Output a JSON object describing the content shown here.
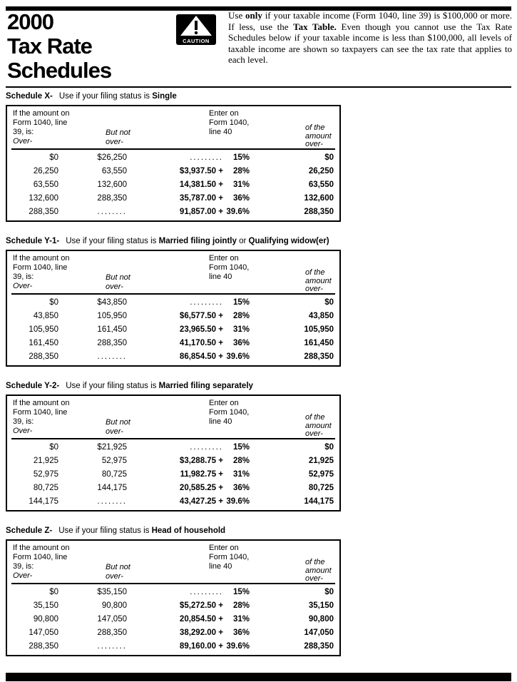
{
  "page": {
    "title_lines": [
      "2000",
      "Tax Rate",
      "Schedules"
    ],
    "caution_label": "CAUTION",
    "intro_segments": [
      {
        "text": "Use ",
        "bold": false
      },
      {
        "text": "only",
        "bold": true
      },
      {
        "text": " if your taxable income (Form 1040, line 39) is $100,000 or more. If less, use the ",
        "bold": false
      },
      {
        "text": "Tax Table.",
        "bold": true
      },
      {
        "text": " Even though you cannot use the Tax Rate Schedules below if your taxable income is less than $100,000, all levels of taxable income are shown so taxpayers can see the tax rate that applies to each level.",
        "bold": false
      }
    ]
  },
  "columns": {
    "c1": [
      "If the amount on",
      "Form 1040, line",
      "39, is:",
      "Over-"
    ],
    "c2": [
      "But not",
      "over-"
    ],
    "c3": [
      "Enter on",
      "Form 1040,",
      "line 40"
    ],
    "c4": [
      "of the",
      "amount",
      "over-"
    ]
  },
  "schedules": [
    {
      "label": "Schedule X-",
      "desc": [
        {
          "text": "Use if your filing status is ",
          "bold": false
        },
        {
          "text": "Single",
          "bold": true
        }
      ],
      "rows": [
        {
          "over": "$0",
          "but_not_over": "$26,250",
          "base": ".........",
          "rate": "15%",
          "of_over": "$0"
        },
        {
          "over": "26,250",
          "but_not_over": "63,550",
          "base": "$3,937.50 +",
          "rate": "28%",
          "of_over": "26,250"
        },
        {
          "over": "63,550",
          "but_not_over": "132,600",
          "base": "14,381.50 +",
          "rate": "31%",
          "of_over": "63,550"
        },
        {
          "over": "132,600",
          "but_not_over": "288,350",
          "base": "35,787.00 +",
          "rate": "36%",
          "of_over": "132,600"
        },
        {
          "over": "288,350",
          "but_not_over": "........",
          "base": "91,857.00 +",
          "rate": "39.6%",
          "of_over": "288,350"
        }
      ]
    },
    {
      "label": "Schedule Y-1-",
      "desc": [
        {
          "text": "Use if your filing status is ",
          "bold": false
        },
        {
          "text": "Married filing jointly",
          "bold": true
        },
        {
          "text": " or ",
          "bold": false
        },
        {
          "text": "Qualifying widow(er)",
          "bold": true
        }
      ],
      "rows": [
        {
          "over": "$0",
          "but_not_over": "$43,850",
          "base": ".........",
          "rate": "15%",
          "of_over": "$0"
        },
        {
          "over": "43,850",
          "but_not_over": "105,950",
          "base": "$6,577.50 +",
          "rate": "28%",
          "of_over": "43,850"
        },
        {
          "over": "105,950",
          "but_not_over": "161,450",
          "base": "23,965.50 +",
          "rate": "31%",
          "of_over": "105,950"
        },
        {
          "over": "161,450",
          "but_not_over": "288,350",
          "base": "41,170.50 +",
          "rate": "36%",
          "of_over": "161,450"
        },
        {
          "over": "288,350",
          "but_not_over": "........",
          "base": "86,854.50 +",
          "rate": "39.6%",
          "of_over": "288,350"
        }
      ]
    },
    {
      "label": "Schedule Y-2-",
      "desc": [
        {
          "text": "Use if your filing status is ",
          "bold": false
        },
        {
          "text": "Married filing separately",
          "bold": true
        }
      ],
      "rows": [
        {
          "over": "$0",
          "but_not_over": "$21,925",
          "base": ".........",
          "rate": "15%",
          "of_over": "$0"
        },
        {
          "over": "21,925",
          "but_not_over": "52,975",
          "base": "$3,288.75 +",
          "rate": "28%",
          "of_over": "21,925"
        },
        {
          "over": "52,975",
          "but_not_over": "80,725",
          "base": "11,982.75 +",
          "rate": "31%",
          "of_over": "52,975"
        },
        {
          "over": "80,725",
          "but_not_over": "144,175",
          "base": "20,585.25 +",
          "rate": "36%",
          "of_over": "80,725"
        },
        {
          "over": "144,175",
          "but_not_over": "........",
          "base": "43,427.25 +",
          "rate": "39.6%",
          "of_over": "144,175"
        }
      ]
    },
    {
      "label": "Schedule Z-",
      "desc": [
        {
          "text": "Use if your filing status is ",
          "bold": false
        },
        {
          "text": "Head of household",
          "bold": true
        }
      ],
      "rows": [
        {
          "over": "$0",
          "but_not_over": "$35,150",
          "base": ".........",
          "rate": "15%",
          "of_over": "$0"
        },
        {
          "over": "35,150",
          "but_not_over": "90,800",
          "base": "$5,272.50 +",
          "rate": "28%",
          "of_over": "35,150"
        },
        {
          "over": "90,800",
          "but_not_over": "147,050",
          "base": "20,854.50 +",
          "rate": "31%",
          "of_over": "90,800"
        },
        {
          "over": "147,050",
          "but_not_over": "288,350",
          "base": "38,292.00 +",
          "rate": "36%",
          "of_over": "147,050"
        },
        {
          "over": "288,350",
          "but_not_over": "........",
          "base": "89,160.00 +",
          "rate": "39.6%",
          "of_over": "288,350"
        }
      ]
    }
  ]
}
